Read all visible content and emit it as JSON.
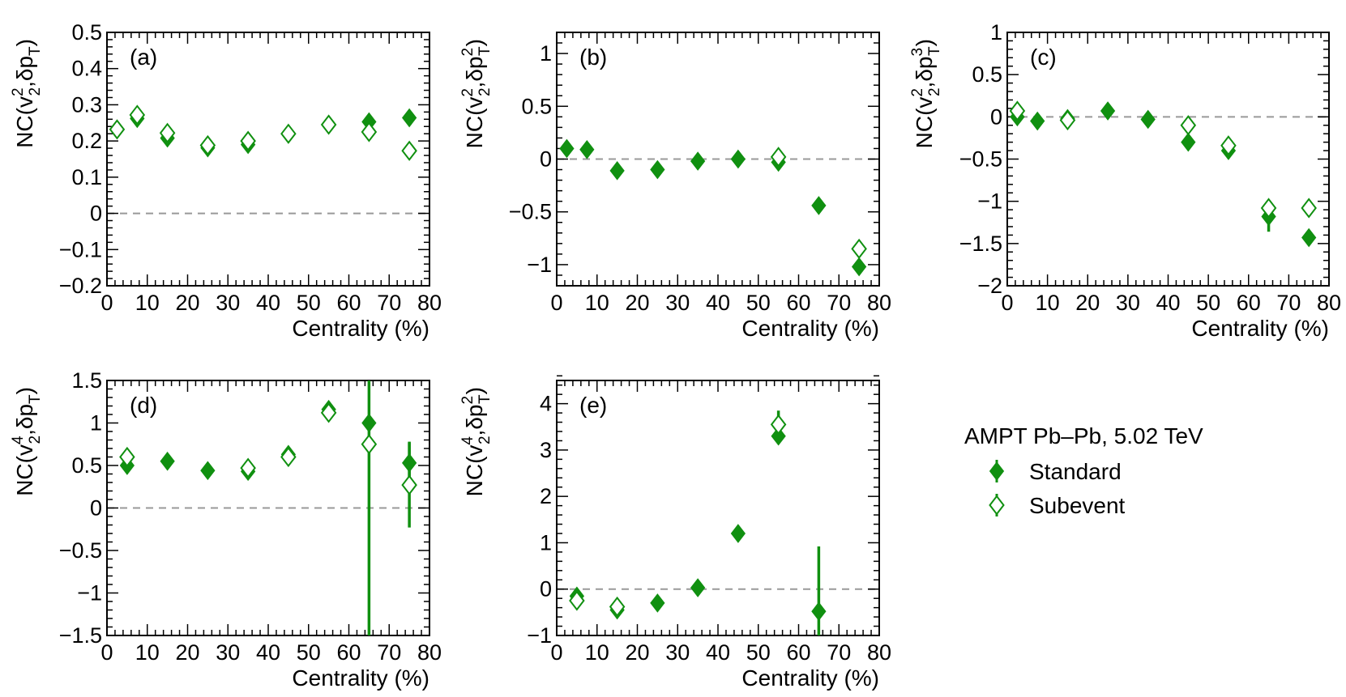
{
  "figure": {
    "legend": {
      "title": "AMPT Pb–Pb, 5.02 TeV",
      "entries": [
        {
          "name": "Standard",
          "marker": "filled-diamond"
        },
        {
          "name": "Subevent",
          "marker": "open-diamond"
        }
      ],
      "placement": "right of bottom row"
    },
    "colors": {
      "marker": "#109010",
      "zero_line": "#999999",
      "axis": "#000000"
    }
  },
  "chart_data": [
    {
      "type": "scatter",
      "panel_label": "(a)",
      "ylabel_pre": "NC(v",
      "ylabel_sup": "2",
      "ylabel_sub": "2",
      "ylabel_mid": ",δp",
      "ylabel_sup2": "",
      "ylabel_sub2": "T",
      "xlabel": "Centrality (%)",
      "xlim": [
        0,
        80
      ],
      "ylim": [
        -0.2,
        0.5
      ],
      "xticks": [
        0,
        10,
        20,
        30,
        40,
        50,
        60,
        70,
        80
      ],
      "xtick_labels": [
        "0",
        "10",
        "20",
        "30",
        "40",
        "50",
        "60",
        "70",
        "80"
      ],
      "yticks": [
        -0.2,
        -0.1,
        0,
        0.1,
        0.2,
        0.3,
        0.4,
        0.5
      ],
      "ytick_labels": [
        "−0.2",
        "−0.1",
        "0",
        "0.1",
        "0.2",
        "0.3",
        "0.4",
        "0.5"
      ],
      "series": [
        {
          "name": "Standard",
          "filled": true,
          "x": [
            2.5,
            7.5,
            15,
            25,
            35,
            45,
            55,
            65,
            75
          ],
          "y": [
            0.232,
            0.262,
            0.208,
            0.181,
            0.19,
            0.22,
            0.245,
            0.253,
            0.264
          ],
          "err": [
            0.012,
            0.012,
            0.01,
            0.01,
            0.01,
            0.01,
            0.01,
            0.012,
            0.012
          ]
        },
        {
          "name": "Subevent",
          "filled": false,
          "x": [
            2.5,
            7.5,
            15,
            25,
            35,
            45,
            55,
            65,
            75
          ],
          "y": [
            0.232,
            0.272,
            0.222,
            0.188,
            0.2,
            0.22,
            0.245,
            0.225,
            0.173
          ],
          "err": [
            0.012,
            0.012,
            0.01,
            0.01,
            0.01,
            0.01,
            0.01,
            0.012,
            0.012
          ]
        }
      ]
    },
    {
      "type": "scatter",
      "panel_label": "(b)",
      "ylabel_pre": "NC(v",
      "ylabel_sup": "2",
      "ylabel_sub": "2",
      "ylabel_mid": ",δp",
      "ylabel_sup2": "2",
      "ylabel_sub2": "T",
      "xlabel": "Centrality (%)",
      "xlim": [
        0,
        80
      ],
      "ylim": [
        -1.2,
        1.2
      ],
      "xticks": [
        0,
        10,
        20,
        30,
        40,
        50,
        60,
        70,
        80
      ],
      "xtick_labels": [
        "0",
        "10",
        "20",
        "30",
        "40",
        "50",
        "60",
        "70",
        "80"
      ],
      "yticks": [
        -1,
        -0.5,
        0,
        0.5,
        1
      ],
      "ytick_labels": [
        "−1",
        "−0.5",
        "0",
        "0.5",
        "1"
      ],
      "series": [
        {
          "name": "Standard",
          "filled": true,
          "x": [
            2.5,
            7.5,
            15,
            25,
            35,
            45,
            55,
            65,
            75
          ],
          "y": [
            0.1,
            0.09,
            -0.11,
            -0.1,
            -0.02,
            0.0,
            -0.03,
            -0.44,
            -1.02
          ],
          "err": [
            0.03,
            0.03,
            0.03,
            0.03,
            0.03,
            0.03,
            0.03,
            0.04,
            0.05
          ]
        },
        {
          "name": "Subevent",
          "filled": false,
          "x": [
            55,
            75
          ],
          "y": [
            0.02,
            -0.85
          ],
          "err": [
            0.03,
            0.05
          ]
        }
      ]
    },
    {
      "type": "scatter",
      "panel_label": "(c)",
      "ylabel_pre": "NC(v",
      "ylabel_sup": "2",
      "ylabel_sub": "2",
      "ylabel_mid": ",δp",
      "ylabel_sup2": "3",
      "ylabel_sub2": "T",
      "xlabel": "Centrality (%)",
      "xlim": [
        0,
        80
      ],
      "ylim": [
        -2,
        1
      ],
      "xticks": [
        0,
        10,
        20,
        30,
        40,
        50,
        60,
        70,
        80
      ],
      "xtick_labels": [
        "0",
        "10",
        "20",
        "30",
        "40",
        "50",
        "60",
        "70",
        "80"
      ],
      "yticks": [
        -2,
        -1.5,
        -1,
        -0.5,
        0,
        0.5,
        1
      ],
      "ytick_labels": [
        "−2",
        "−1.5",
        "−1",
        "−0.5",
        "0",
        "0.5",
        "1"
      ],
      "series": [
        {
          "name": "Standard",
          "filled": true,
          "x": [
            2.5,
            7.5,
            15,
            25,
            35,
            45,
            55,
            65,
            75
          ],
          "y": [
            0.0,
            -0.05,
            -0.02,
            0.07,
            -0.03,
            -0.3,
            -0.4,
            -1.18,
            -1.43
          ],
          "err": [
            0.04,
            0.04,
            0.04,
            0.04,
            0.04,
            0.05,
            0.05,
            0.18,
            0.05
          ]
        },
        {
          "name": "Subevent",
          "filled": false,
          "x": [
            2.5,
            15,
            45,
            55,
            65,
            75
          ],
          "y": [
            0.07,
            -0.04,
            -0.1,
            -0.34,
            -1.08,
            -1.08
          ],
          "err": [
            0.04,
            0.04,
            0.05,
            0.05,
            0.08,
            0.05
          ]
        }
      ]
    },
    {
      "type": "scatter",
      "panel_label": "(d)",
      "ylabel_pre": "NC(v",
      "ylabel_sup": "4",
      "ylabel_sub": "2",
      "ylabel_mid": ",δp",
      "ylabel_sup2": "",
      "ylabel_sub2": "T",
      "xlabel": "Centrality (%)",
      "xlim": [
        0,
        80
      ],
      "ylim": [
        -1.5,
        1.5
      ],
      "xticks": [
        0,
        10,
        20,
        30,
        40,
        50,
        60,
        70,
        80
      ],
      "xtick_labels": [
        "0",
        "10",
        "20",
        "30",
        "40",
        "50",
        "60",
        "70",
        "80"
      ],
      "yticks": [
        -1.5,
        -1,
        -0.5,
        0,
        0.5,
        1,
        1.5
      ],
      "ytick_labels": [
        "−1.5",
        "−1",
        "−0.5",
        "0",
        "0.5",
        "1",
        "1.5"
      ],
      "series": [
        {
          "name": "Standard",
          "filled": true,
          "x": [
            5,
            15,
            25,
            35,
            45,
            55,
            65,
            75
          ],
          "y": [
            0.5,
            0.55,
            0.44,
            0.43,
            0.63,
            1.16,
            1.0,
            0.53
          ],
          "err": [
            0.04,
            0.04,
            0.04,
            0.04,
            0.05,
            0.06,
            2.6,
            0.25
          ]
        },
        {
          "name": "Subevent",
          "filled": false,
          "x": [
            5,
            35,
            45,
            55,
            65,
            75
          ],
          "y": [
            0.6,
            0.47,
            0.6,
            1.12,
            0.75,
            0.27
          ],
          "err": [
            0.04,
            0.04,
            0.05,
            0.06,
            0.1,
            0.5
          ]
        }
      ]
    },
    {
      "type": "scatter",
      "panel_label": "(e)",
      "ylabel_pre": "NC(v",
      "ylabel_sup": "4",
      "ylabel_sub": "2",
      "ylabel_mid": ",δp",
      "ylabel_sup2": "2",
      "ylabel_sub2": "T",
      "xlabel": "Centrality (%)",
      "xlim": [
        0,
        80
      ],
      "ylim": [
        -1,
        4.5
      ],
      "xticks": [
        0,
        10,
        20,
        30,
        40,
        50,
        60,
        70,
        80
      ],
      "xtick_labels": [
        "0",
        "10",
        "20",
        "30",
        "40",
        "50",
        "60",
        "70",
        "80"
      ],
      "yticks": [
        -1,
        0,
        1,
        2,
        3,
        4
      ],
      "ytick_labels": [
        "−1",
        "0",
        "1",
        "2",
        "3",
        "4"
      ],
      "series": [
        {
          "name": "Standard",
          "filled": true,
          "x": [
            5,
            15,
            25,
            35,
            45,
            55,
            65
          ],
          "y": [
            -0.15,
            -0.45,
            -0.3,
            0.03,
            1.2,
            3.3,
            -0.48
          ],
          "err": [
            0.05,
            0.05,
            0.05,
            0.05,
            0.06,
            0.15,
            1.4
          ]
        },
        {
          "name": "Subevent",
          "filled": false,
          "x": [
            5,
            15,
            55
          ],
          "y": [
            -0.25,
            -0.38,
            3.55
          ],
          "err": [
            0.05,
            0.05,
            0.3
          ]
        }
      ]
    }
  ]
}
